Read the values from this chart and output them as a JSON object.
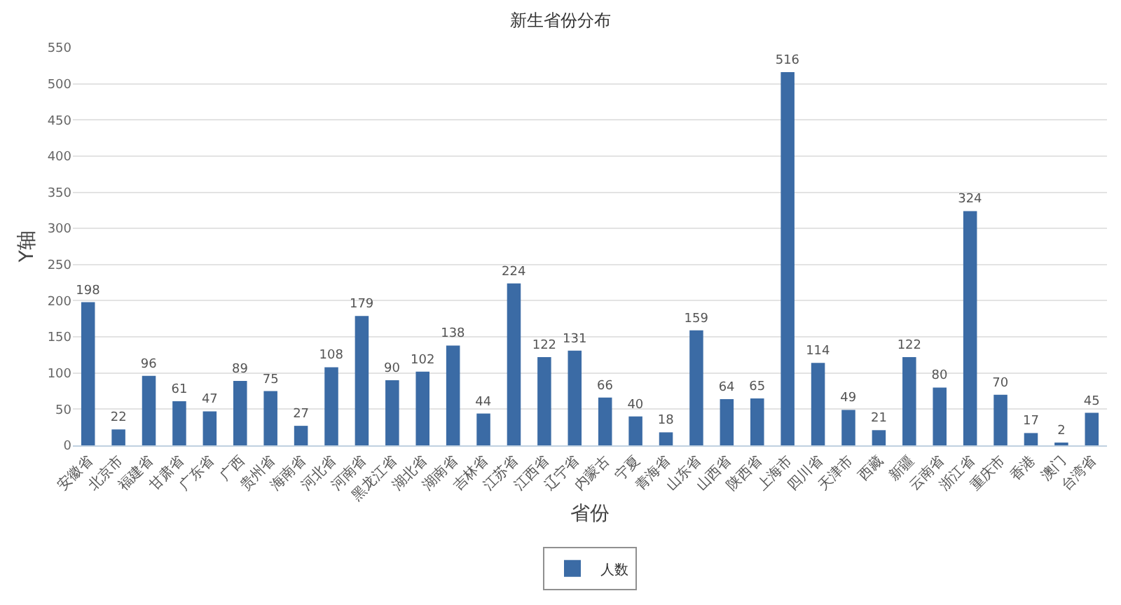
{
  "chart_data": {
    "type": "bar",
    "title": "新生省份分布",
    "xlabel": "省份",
    "ylabel": "Y轴",
    "categories": [
      "安徽省",
      "北京市",
      "福建省",
      "甘肃省",
      "广东省",
      "广西",
      "贵州省",
      "海南省",
      "河北省",
      "河南省",
      "黑龙江省",
      "湖北省",
      "湖南省",
      "吉林省",
      "江苏省",
      "江西省",
      "辽宁省",
      "内蒙古",
      "宁夏",
      "青海省",
      "山东省",
      "山西省",
      "陕西省",
      "上海市",
      "四川省",
      "天津市",
      "西藏",
      "新疆",
      "云南省",
      "浙江省",
      "重庆市",
      "香港",
      "澳门",
      "台湾省"
    ],
    "series": [
      {
        "name": "人数",
        "color": "#3b6ba5",
        "values": [
          198,
          22,
          96,
          61,
          47,
          89,
          75,
          27,
          108,
          179,
          90,
          102,
          138,
          44,
          224,
          122,
          131,
          66,
          40,
          18,
          159,
          64,
          65,
          516,
          114,
          49,
          21,
          122,
          80,
          324,
          70,
          17,
          2,
          45
        ]
      }
    ],
    "ylim": [
      0,
      550
    ],
    "yticks": [
      0,
      50,
      100,
      150,
      200,
      250,
      300,
      350,
      400,
      450,
      500,
      550
    ],
    "grid": "y",
    "legend": "bottom",
    "data_labels": true
  }
}
